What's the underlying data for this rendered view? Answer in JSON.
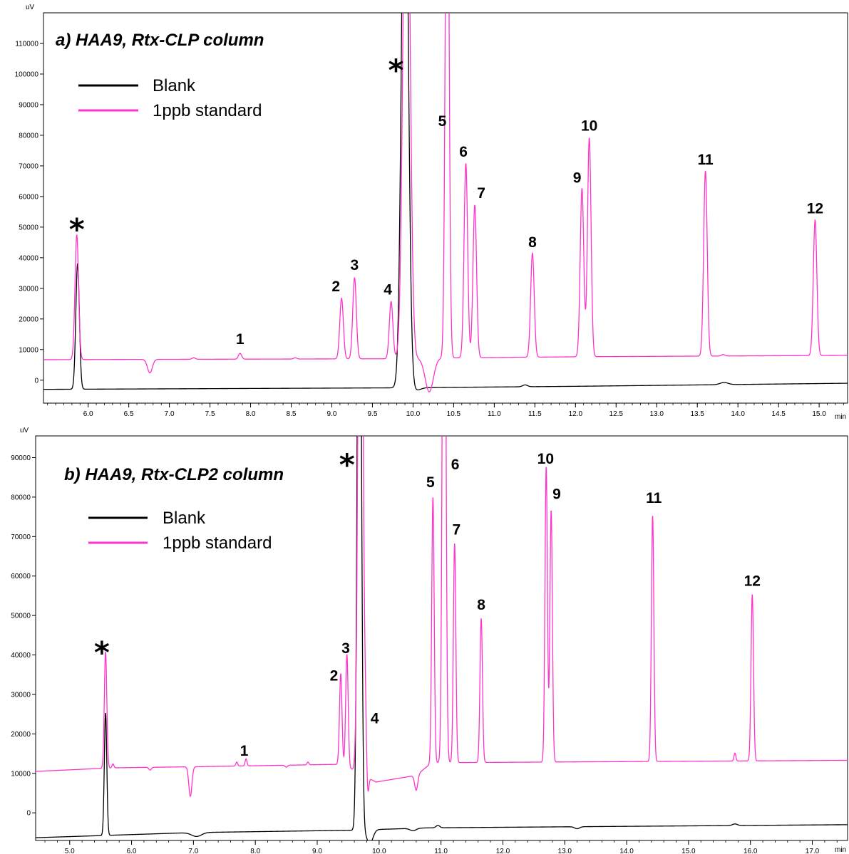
{
  "chart_data": [
    {
      "type": "line",
      "title": "a) HAA9, Rtx-CLP column",
      "y_unit": "uV",
      "x_unit": "min",
      "xlim": [
        5.45,
        15.35
      ],
      "ylim": [
        -7500,
        120000
      ],
      "x_ticks": [
        "6.0",
        "6.5",
        "7.0",
        "7.5",
        "8.0",
        "8.5",
        "9.0",
        "9.5",
        "10.0",
        "10.5",
        "11.0",
        "11.5",
        "12.0",
        "12.5",
        "13.0",
        "13.5",
        "14.0",
        "14.5",
        "15.0"
      ],
      "y_ticks": [
        "0",
        "10000",
        "20000",
        "30000",
        "40000",
        "50000",
        "60000",
        "70000",
        "80000",
        "90000",
        "100000",
        "110000"
      ],
      "legend": [
        "Blank",
        "1ppb standard"
      ],
      "colors": {
        "blank": "#000000",
        "standard": "#ff33cc"
      },
      "baselines": {
        "blank": [
          [
            5.45,
            -3000
          ],
          [
            9.8,
            -2500
          ],
          [
            12.0,
            -2000
          ],
          [
            15.35,
            -1000
          ]
        ],
        "standard": [
          [
            5.45,
            6700
          ],
          [
            9.75,
            7000
          ],
          [
            10.5,
            7300
          ],
          [
            12.3,
            7700
          ],
          [
            15.35,
            8100
          ]
        ]
      },
      "series": [
        {
          "key": "blank",
          "name": "Blank",
          "peaks": [
            {
              "x": 5.87,
              "h": 41000,
              "w": 0.022
            },
            {
              "x": 9.9,
              "h": 200000,
              "w": 0.04
            },
            {
              "x": 10.03,
              "h": -900,
              "w": 0.06
            },
            {
              "x": 11.38,
              "h": 600,
              "w": 0.03
            },
            {
              "x": 13.83,
              "h": 700,
              "w": 0.05
            }
          ]
        },
        {
          "key": "standard",
          "name": "1ppb standard",
          "peaks": [
            {
              "x": 5.86,
              "h": 40700,
              "w": 0.022
            },
            {
              "x": 6.76,
              "h": -4400,
              "w": 0.03
            },
            {
              "x": 7.3,
              "h": 500,
              "w": 0.02
            },
            {
              "x": 7.87,
              "h": 1900,
              "w": 0.02
            },
            {
              "x": 8.55,
              "h": 400,
              "w": 0.02
            },
            {
              "x": 9.12,
              "h": 19800,
              "w": 0.022
            },
            {
              "x": 9.28,
              "h": 26500,
              "w": 0.022
            },
            {
              "x": 9.73,
              "h": 18700,
              "w": 0.022
            },
            {
              "x": 9.92,
              "h": 200000,
              "w": 0.04
            },
            {
              "x": 10.2,
              "h": -11000,
              "w": 0.05
            },
            {
              "x": 10.42,
              "h": 200000,
              "w": 0.022
            },
            {
              "x": 10.65,
              "h": 63500,
              "w": 0.022
            },
            {
              "x": 10.76,
              "h": 49800,
              "w": 0.022
            },
            {
              "x": 11.47,
              "h": 34000,
              "w": 0.022
            },
            {
              "x": 12.08,
              "h": 55000,
              "w": 0.022
            },
            {
              "x": 12.17,
              "h": 71500,
              "w": 0.022
            },
            {
              "x": 13.6,
              "h": 60500,
              "w": 0.022
            },
            {
              "x": 13.82,
              "h": 500,
              "w": 0.02
            },
            {
              "x": 14.95,
              "h": 44300,
              "w": 0.022
            }
          ]
        }
      ],
      "annotations": [
        {
          "text": "*",
          "x": 5.86,
          "y": 51000,
          "kind": "star"
        },
        {
          "text": "*",
          "x": 9.79,
          "y": 103000,
          "kind": "star"
        },
        {
          "text": "1",
          "x": 7.87,
          "y": 11800
        },
        {
          "text": "2",
          "x": 9.05,
          "y": 29000
        },
        {
          "text": "3",
          "x": 9.28,
          "y": 36000
        },
        {
          "text": "4",
          "x": 9.69,
          "y": 28000
        },
        {
          "text": "5",
          "x": 10.36,
          "y": 83000
        },
        {
          "text": "6",
          "x": 10.62,
          "y": 73000
        },
        {
          "text": "7",
          "x": 10.84,
          "y": 59500
        },
        {
          "text": "8",
          "x": 11.47,
          "y": 43500
        },
        {
          "text": "9",
          "x": 12.02,
          "y": 64500
        },
        {
          "text": "10",
          "x": 12.17,
          "y": 81500
        },
        {
          "text": "11",
          "x": 13.6,
          "y": 70500
        },
        {
          "text": "12",
          "x": 14.95,
          "y": 54500
        }
      ]
    },
    {
      "type": "line",
      "title": "b) HAA9, Rtx-CLP2 column",
      "y_unit": "uV",
      "x_unit": "min",
      "xlim": [
        4.45,
        17.57
      ],
      "ylim": [
        -7000,
        95500
      ],
      "x_ticks": [
        "5.0",
        "6.0",
        "7.0",
        "8.0",
        "9.0",
        "10.0",
        "11.0",
        "12.0",
        "13.0",
        "14.0",
        "15.0",
        "16.0",
        "17.0"
      ],
      "y_ticks": [
        "0",
        "10000",
        "20000",
        "30000",
        "40000",
        "50000",
        "60000",
        "70000",
        "80000",
        "90000"
      ],
      "legend": [
        "Blank",
        "1ppb standard"
      ],
      "colors": {
        "blank": "#000000",
        "standard": "#ff33cc"
      },
      "baselines": {
        "blank": [
          [
            4.45,
            -6300
          ],
          [
            7.0,
            -5000
          ],
          [
            9.6,
            -4400
          ],
          [
            10.8,
            -3800
          ],
          [
            17.57,
            -3000
          ]
        ],
        "standard": [
          [
            4.45,
            10500
          ],
          [
            5.7,
            11400
          ],
          [
            7.1,
            11700
          ],
          [
            9.4,
            12300
          ],
          [
            9.95,
            7800
          ],
          [
            10.6,
            9500
          ],
          [
            10.85,
            12700
          ],
          [
            17.57,
            13300
          ]
        ]
      },
      "series": [
        {
          "key": "blank",
          "name": "Blank",
          "peaks": [
            {
              "x": 5.58,
              "h": 31000,
              "w": 0.02
            },
            {
              "x": 7.05,
              "h": -1000,
              "w": 0.08
            },
            {
              "x": 9.68,
              "h": 200000,
              "w": 0.03
            },
            {
              "x": 9.85,
              "h": -3500,
              "w": 0.05
            },
            {
              "x": 10.55,
              "h": -600,
              "w": 0.05
            },
            {
              "x": 10.95,
              "h": 600,
              "w": 0.03
            },
            {
              "x": 13.2,
              "h": -500,
              "w": 0.04
            },
            {
              "x": 15.75,
              "h": 400,
              "w": 0.04
            }
          ]
        },
        {
          "key": "standard",
          "name": "1ppb standard",
          "peaks": [
            {
              "x": 5.58,
              "h": 29500,
              "w": 0.02
            },
            {
              "x": 5.7,
              "h": 1000,
              "w": 0.015
            },
            {
              "x": 6.3,
              "h": -700,
              "w": 0.02
            },
            {
              "x": 6.95,
              "h": -7500,
              "w": 0.025
            },
            {
              "x": 7.7,
              "h": 1000,
              "w": 0.015
            },
            {
              "x": 7.85,
              "h": 1800,
              "w": 0.015
            },
            {
              "x": 8.5,
              "h": -500,
              "w": 0.02
            },
            {
              "x": 8.85,
              "h": 700,
              "w": 0.015
            },
            {
              "x": 9.38,
              "h": 23000,
              "w": 0.02
            },
            {
              "x": 9.48,
              "h": 28500,
              "w": 0.02
            },
            {
              "x": 9.7,
              "h": 200000,
              "w": 0.035
            },
            {
              "x": 9.78,
              "h": 10000,
              "w": 0.015
            },
            {
              "x": 9.82,
              "h": -4000,
              "w": 0.015
            },
            {
              "x": 10.6,
              "h": -3800,
              "w": 0.025
            },
            {
              "x": 10.87,
              "h": 67300,
              "w": 0.02
            },
            {
              "x": 11.05,
              "h": 200000,
              "w": 0.025
            },
            {
              "x": 11.22,
              "h": 55500,
              "w": 0.02
            },
            {
              "x": 11.65,
              "h": 36500,
              "w": 0.02
            },
            {
              "x": 12.7,
              "h": 74800,
              "w": 0.02
            },
            {
              "x": 12.78,
              "h": 63800,
              "w": 0.02
            },
            {
              "x": 14.42,
              "h": 62300,
              "w": 0.02
            },
            {
              "x": 15.75,
              "h": 2000,
              "w": 0.015
            },
            {
              "x": 16.03,
              "h": 42200,
              "w": 0.02
            }
          ]
        }
      ],
      "annotations": [
        {
          "text": "*",
          "x": 5.52,
          "y": 42000,
          "kind": "star"
        },
        {
          "text": "*",
          "x": 9.48,
          "y": 89500,
          "kind": "star"
        },
        {
          "text": "1",
          "x": 7.82,
          "y": 14500
        },
        {
          "text": "2",
          "x": 9.27,
          "y": 33500
        },
        {
          "text": "3",
          "x": 9.46,
          "y": 40500
        },
        {
          "text": "4",
          "x": 9.93,
          "y": 22700
        },
        {
          "text": "5",
          "x": 10.83,
          "y": 82500
        },
        {
          "text": "6",
          "x": 11.23,
          "y": 87000
        },
        {
          "text": "7",
          "x": 11.25,
          "y": 70500
        },
        {
          "text": "8",
          "x": 11.65,
          "y": 51500
        },
        {
          "text": "10",
          "x": 12.69,
          "y": 88500
        },
        {
          "text": "9",
          "x": 12.87,
          "y": 79500
        },
        {
          "text": "11",
          "x": 14.44,
          "y": 78500
        },
        {
          "text": "12",
          "x": 16.03,
          "y": 57500
        }
      ]
    }
  ]
}
